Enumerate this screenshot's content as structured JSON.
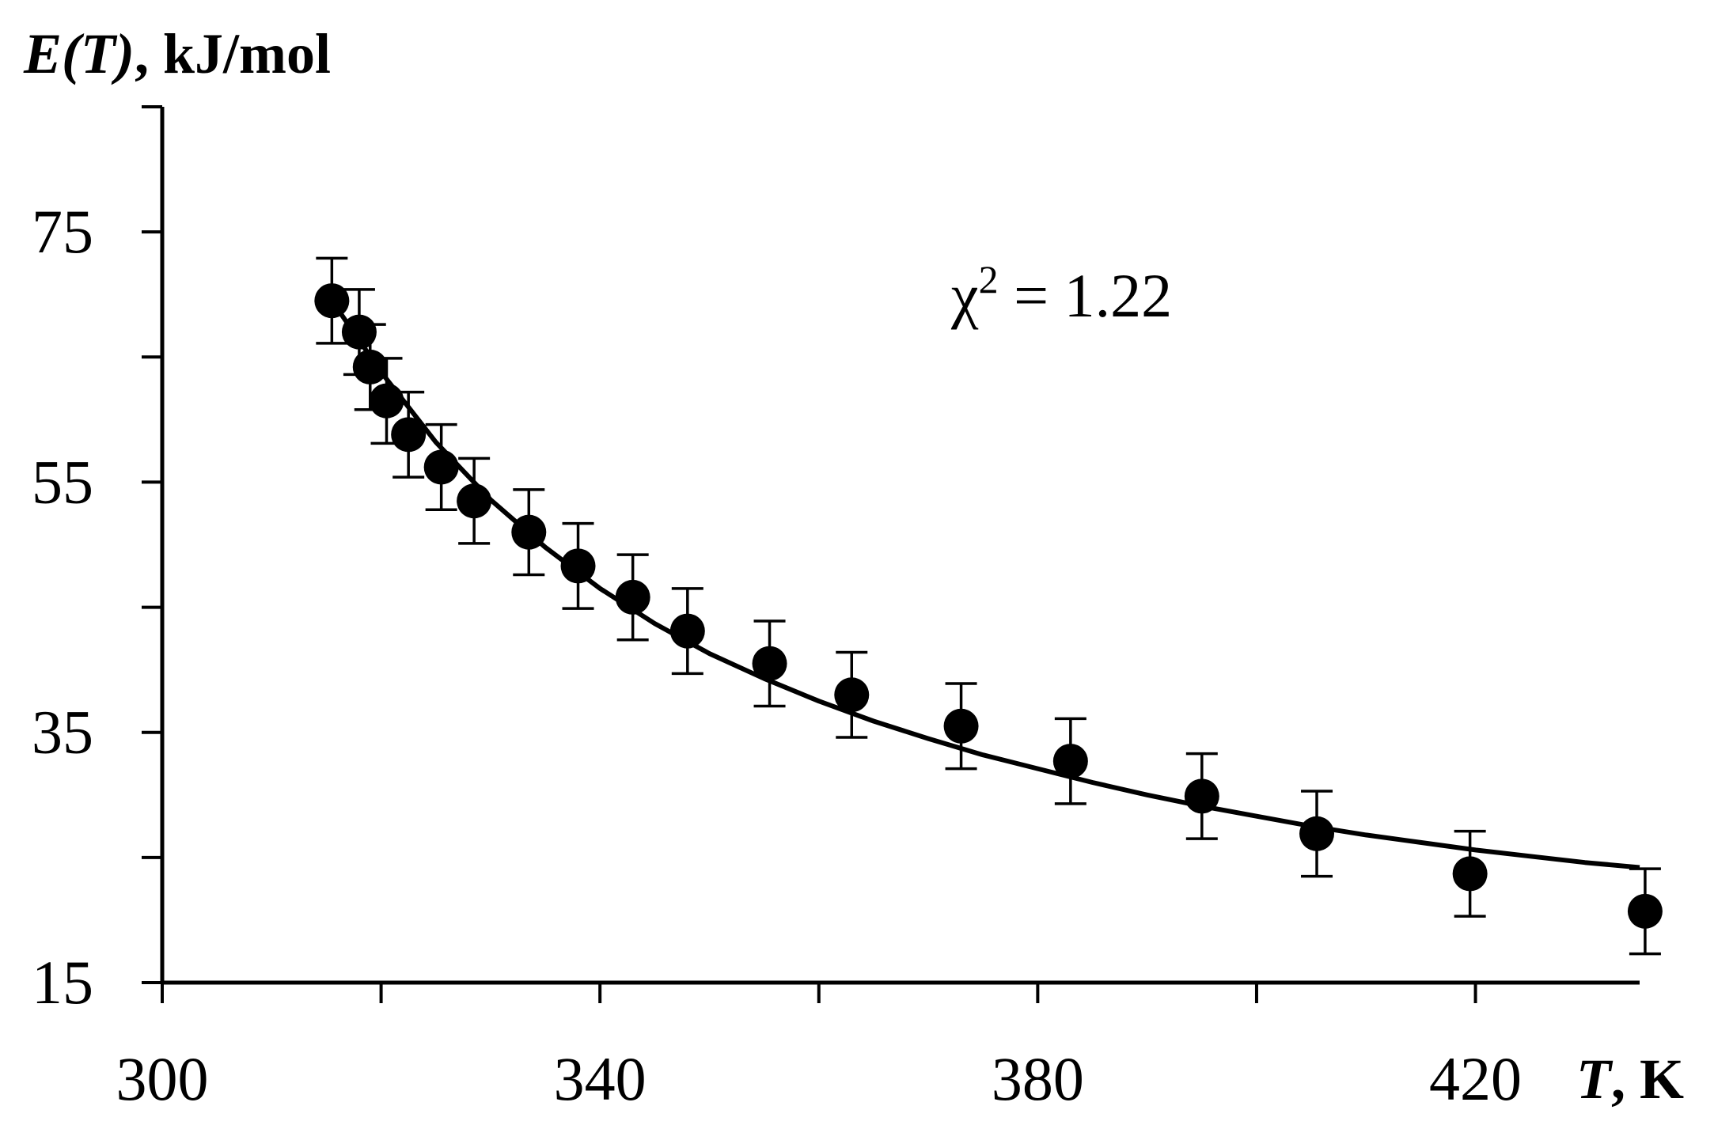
{
  "chart_data": {
    "type": "scatter",
    "title": "",
    "ylabel": {
      "symbol": "E(T)",
      "unit": ", kJ/mol"
    },
    "xlabel": {
      "symbol": "T",
      "unit": ", K"
    },
    "xlim": [
      300,
      435
    ],
    "ylim": [
      15,
      85
    ],
    "x_ticks_major": [
      300,
      340,
      380,
      420
    ],
    "x_ticks_minor": [
      320,
      360,
      400
    ],
    "y_ticks_labeled": [
      15,
      35,
      55,
      75
    ],
    "y_ticks_minor": [
      25,
      45,
      65,
      85
    ],
    "annotation": {
      "base": "χ",
      "sup": "2",
      "rest": " = 1.22"
    },
    "grid": false,
    "legend": "none",
    "series": [
      {
        "kind": "points_with_error_bars",
        "error": 3.4,
        "points": [
          [
            315.5,
            69.5
          ],
          [
            318.0,
            67.0
          ],
          [
            319.0,
            64.2
          ],
          [
            320.5,
            61.5
          ],
          [
            322.5,
            58.8
          ],
          [
            325.5,
            56.2
          ],
          [
            328.5,
            53.5
          ],
          [
            333.5,
            51.0
          ],
          [
            338.0,
            48.3
          ],
          [
            343.0,
            45.8
          ],
          [
            348.0,
            43.1
          ],
          [
            355.5,
            40.5
          ],
          [
            363.0,
            38.0
          ],
          [
            373.0,
            35.5
          ],
          [
            383.0,
            32.7
          ],
          [
            395.0,
            29.9
          ],
          [
            405.5,
            26.9
          ],
          [
            419.5,
            23.7
          ],
          [
            435.5,
            20.7
          ]
        ]
      },
      {
        "kind": "fit_curve",
        "points": [
          [
            315.5,
            69.5
          ],
          [
            320,
            63.8
          ],
          [
            325,
            58.2
          ],
          [
            330,
            53.6
          ],
          [
            335,
            49.8
          ],
          [
            340,
            46.5
          ],
          [
            345,
            43.7
          ],
          [
            350,
            41.3
          ],
          [
            355,
            39.3
          ],
          [
            360,
            37.5
          ],
          [
            365,
            35.9
          ],
          [
            370,
            34.5
          ],
          [
            375,
            33.2
          ],
          [
            380,
            32.1
          ],
          [
            385,
            31.0
          ],
          [
            390,
            30.0
          ],
          [
            395,
            29.1
          ],
          [
            400,
            28.3
          ],
          [
            405,
            27.5
          ],
          [
            410,
            26.8
          ],
          [
            415,
            26.2
          ],
          [
            420,
            25.6
          ],
          [
            425,
            25.1
          ],
          [
            430,
            24.6
          ],
          [
            435,
            24.2
          ]
        ]
      }
    ]
  }
}
